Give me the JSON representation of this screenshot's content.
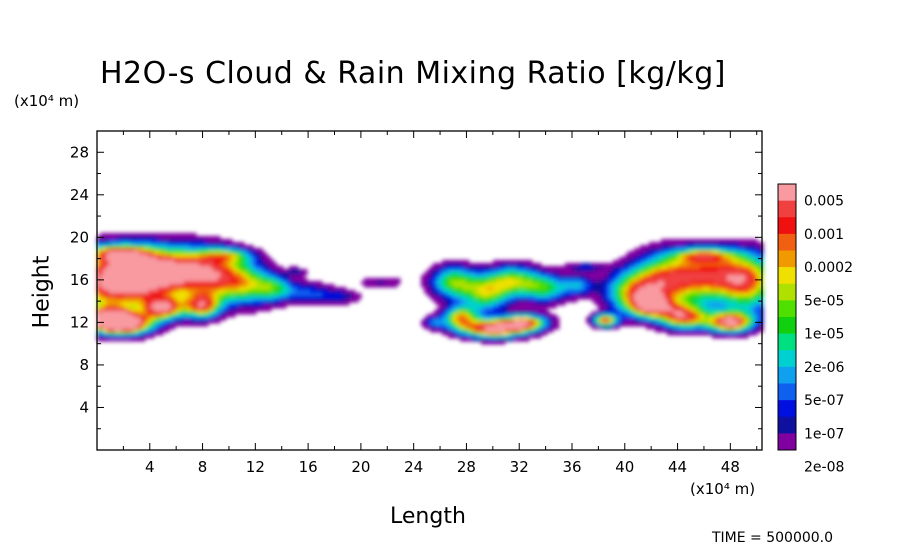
{
  "chart_data": {
    "type": "heatmap",
    "title": "H2O-s Cloud & Rain Mixing Ratio [kg/kg]",
    "xlabel": "Length",
    "ylabel": "Height",
    "x_unit": "(x10⁴ m)",
    "y_unit": "(x10⁴ m)",
    "x_ticks": [
      4,
      8,
      12,
      16,
      20,
      24,
      28,
      32,
      36,
      40,
      44,
      48
    ],
    "y_ticks": [
      4,
      8,
      12,
      16,
      20,
      24,
      28
    ],
    "xlim": [
      0,
      50.4
    ],
    "ylim": [
      0,
      30
    ],
    "colorbar": {
      "labels": [
        "0.005",
        "0.001",
        "0.0002",
        "5e-05",
        "1e-05",
        "2e-06",
        "5e-07",
        "1e-07",
        "2e-08"
      ],
      "colors": [
        "#f89aa0",
        "#f04040",
        "#f01010",
        "#f06010",
        "#f09a00",
        "#f0e000",
        "#b0e000",
        "#50e000",
        "#10d010",
        "#00e080",
        "#00d0d0",
        "#10a0f0",
        "#1060f0",
        "#0010e0",
        "#1010a0",
        "#8000a0"
      ]
    },
    "field_regions": [
      {
        "name": "left-cloud",
        "x_range": [
          0,
          16
        ],
        "y_range": [
          10,
          19.5
        ],
        "max_level": "0.005"
      },
      {
        "name": "center-anvil",
        "x_range": [
          13,
          24
        ],
        "y_range": [
          13,
          17.5
        ],
        "max_level": "5e-07"
      },
      {
        "name": "mid-convective-core",
        "x_range": [
          25,
          37
        ],
        "y_range": [
          10,
          17.5
        ],
        "max_level": "0.005"
      },
      {
        "name": "right-cloud",
        "x_range": [
          36,
          50.4
        ],
        "y_range": [
          11,
          19
        ],
        "max_level": "0.005"
      }
    ],
    "annotation": "TIME = 500000.0"
  }
}
